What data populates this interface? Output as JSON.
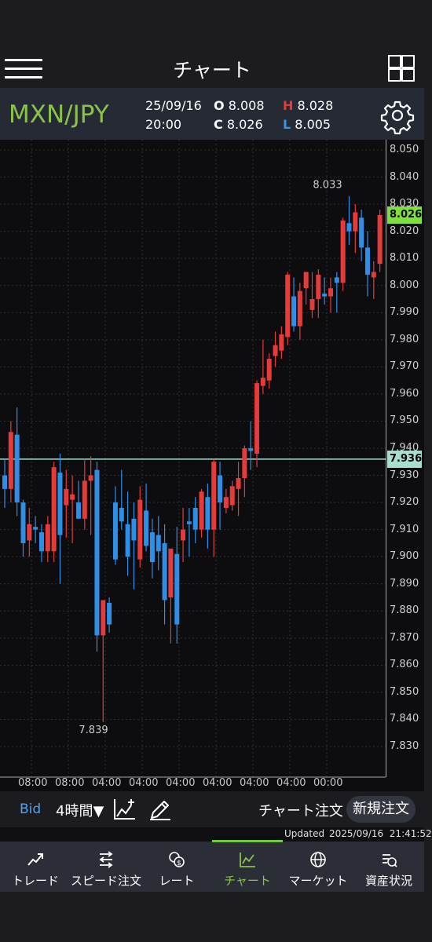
{
  "header": {
    "title": "チャート"
  },
  "info": {
    "pair": "MXN/JPY",
    "date": "25/09/16",
    "time": "20:00",
    "open_label": "O",
    "open": "8.008",
    "close_label": "C",
    "close": "8.026",
    "high_label": "H",
    "high": "8.028",
    "low_label": "L",
    "low": "8.005"
  },
  "chart": {
    "y_ticks": [
      "8.050",
      "8.040",
      "8.030",
      "8.020",
      "8.010",
      "8.000",
      "7.990",
      "7.980",
      "7.970",
      "7.960",
      "7.950",
      "7.940",
      "7.930",
      "7.920",
      "7.910",
      "7.900",
      "7.890",
      "7.880",
      "7.870",
      "7.860",
      "7.850",
      "7.840",
      "7.830"
    ],
    "x_ticks": [
      "08:00",
      "08:00",
      "04:00",
      "04:00",
      "04:00",
      "04:00",
      "04:00",
      "04:00",
      "00:00"
    ],
    "current_price": "8.026",
    "line_price": "7.936",
    "high_annotation": "8.033",
    "low_annotation": "7.839",
    "colors": {
      "up": "#e53b3b",
      "down": "#2f8ee6",
      "current_tag": "#7ee03a",
      "line_tag": "#a8ddd0"
    }
  },
  "chart_data": {
    "type": "candlestick",
    "x_ticks": [
      "08:00",
      "08:00",
      "04:00",
      "04:00",
      "04:00",
      "04:00",
      "04:00",
      "04:00",
      "00:00"
    ],
    "ylim": [
      7.825,
      8.052
    ],
    "annotations": [
      {
        "label": "8.033"
      },
      {
        "label": "7.839"
      }
    ],
    "candles": [
      [
        7.93,
        7.936,
        7.918,
        7.925
      ],
      [
        7.925,
        7.95,
        7.92,
        7.946
      ],
      [
        7.945,
        7.955,
        7.915,
        7.92
      ],
      [
        7.92,
        7.921,
        7.9,
        7.905
      ],
      [
        7.906,
        7.918,
        7.9,
        7.912
      ],
      [
        7.911,
        7.915,
        7.905,
        7.91
      ],
      [
        7.909,
        7.912,
        7.898,
        7.902
      ],
      [
        7.902,
        7.915,
        7.898,
        7.912
      ],
      [
        7.902,
        7.935,
        7.898,
        7.933
      ],
      [
        7.931,
        7.938,
        7.89,
        7.908
      ],
      [
        7.919,
        7.932,
        7.907,
        7.925
      ],
      [
        7.921,
        7.93,
        7.905,
        7.923
      ],
      [
        7.92,
        7.928,
        7.914,
        7.914
      ],
      [
        7.914,
        7.936,
        7.91,
        7.928
      ],
      [
        7.928,
        7.937,
        7.908,
        7.93
      ],
      [
        7.932,
        7.935,
        7.865,
        7.871
      ],
      [
        7.871,
        7.884,
        7.839,
        7.884
      ],
      [
        7.883,
        7.885,
        7.872,
        7.875
      ],
      [
        7.92,
        7.926,
        7.897,
        7.899
      ],
      [
        7.918,
        7.932,
        7.91,
        7.913
      ],
      [
        7.912,
        7.924,
        7.893,
        7.9
      ],
      [
        7.914,
        7.92,
        7.888,
        7.906
      ],
      [
        7.899,
        7.926,
        7.896,
        7.921
      ],
      [
        7.917,
        7.927,
        7.902,
        7.904
      ],
      [
        7.909,
        7.914,
        7.892,
        7.898
      ],
      [
        7.908,
        7.915,
        7.895,
        7.902
      ],
      [
        7.905,
        7.912,
        7.875,
        7.884
      ],
      [
        7.885,
        7.902,
        7.868,
        7.903
      ],
      [
        7.901,
        7.911,
        7.868,
        7.875
      ],
      [
        7.906,
        7.918,
        7.898,
        7.91
      ],
      [
        7.913,
        7.918,
        7.9,
        7.912
      ],
      [
        7.918,
        7.922,
        7.905,
        7.91
      ],
      [
        7.91,
        7.925,
        7.907,
        7.924
      ],
      [
        7.922,
        7.927,
        7.903,
        7.91
      ],
      [
        7.91,
        7.936,
        7.9,
        7.935
      ],
      [
        7.93,
        7.935,
        7.91,
        7.92
      ],
      [
        7.918,
        7.925,
        7.916,
        7.922
      ],
      [
        7.919,
        7.928,
        7.917,
        7.926
      ],
      [
        7.925,
        7.935,
        7.915,
        7.929
      ],
      [
        7.929,
        7.941,
        7.922,
        7.94
      ],
      [
        7.94,
        7.95,
        7.932,
        7.939
      ],
      [
        7.938,
        7.965,
        7.933,
        7.964
      ],
      [
        7.963,
        7.98,
        7.96,
        7.966
      ],
      [
        7.965,
        7.975,
        7.962,
        7.973
      ],
      [
        7.974,
        7.983,
        7.97,
        7.978
      ],
      [
        7.976,
        7.985,
        7.973,
        7.982
      ],
      [
        7.981,
        8.005,
        7.978,
        8.004
      ],
      [
        7.996,
        8.003,
        7.983,
        7.985
      ],
      [
        7.985,
        8.001,
        7.98,
        7.998
      ],
      [
        7.999,
        8.005,
        7.993,
        8.005
      ],
      [
        7.991,
        8.005,
        7.988,
        7.995
      ],
      [
        7.995,
        8.006,
        7.988,
        8.004
      ],
      [
        7.997,
        8.003,
        7.993,
        7.996
      ],
      [
        7.996,
        8.003,
        7.99,
        7.999
      ],
      [
        8.003,
        8.005,
        7.99,
        8.001
      ],
      [
        8.001,
        8.025,
        7.998,
        8.024
      ],
      [
        8.023,
        8.033,
        8.015,
        8.02
      ],
      [
        8.02,
        8.03,
        8.012,
        8.027
      ],
      [
        8.025,
        8.028,
        8.009,
        8.014
      ],
      [
        8.014,
        8.02,
        7.996,
        8.004
      ],
      [
        8.003,
        8.009,
        7.995,
        8.005
      ],
      [
        8.008,
        8.028,
        8.005,
        8.026
      ]
    ]
  },
  "toolbar": {
    "bid": "Bid",
    "period": "4時間▼",
    "chart_order": "チャート注文",
    "new_order": "新規注文"
  },
  "status": {
    "updated_label": "Updated",
    "updated_value": "2025/09/16  21:41:52"
  },
  "tabs": [
    {
      "label": "トレード",
      "icon": "trade-icon"
    },
    {
      "label": "スピード注文",
      "icon": "speed-order-icon"
    },
    {
      "label": "レート",
      "icon": "rate-icon"
    },
    {
      "label": "チャート",
      "icon": "chart-icon"
    },
    {
      "label": "マーケット",
      "icon": "market-icon"
    },
    {
      "label": "資産状況",
      "icon": "assets-icon"
    }
  ]
}
